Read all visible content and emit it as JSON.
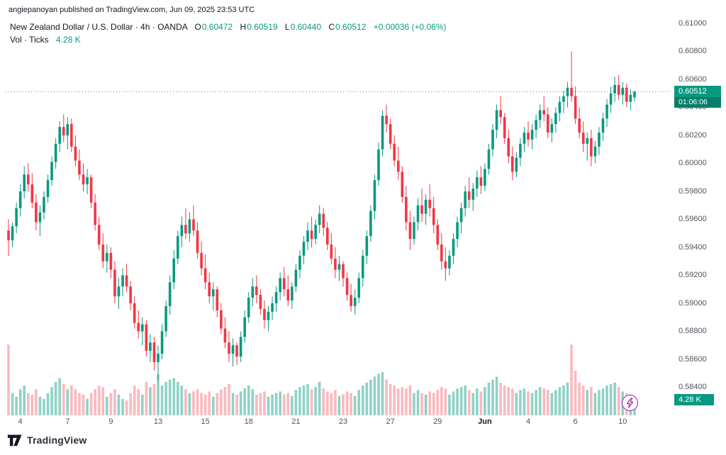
{
  "page": {
    "attribution": "angiepanoyan published on TradingView.com, Jun 09, 2025 23:53 UTC",
    "brand": "TradingView"
  },
  "legend": {
    "title": "New Zealand Dollar / U.S. Dollar · 4h · OANDA",
    "ohlc": [
      {
        "label": "O",
        "value": "0.60472"
      },
      {
        "label": "H",
        "value": "0.60519"
      },
      {
        "label": "L",
        "value": "0.60440"
      },
      {
        "label": "C",
        "value": "0.60512"
      }
    ],
    "change": "+0.00036 (+0.06%)",
    "volume_label": "Vol · Ticks",
    "volume_value": "4.28 K"
  },
  "price_scale": {
    "ticks": [
      "0.61000",
      "0.60800",
      "0.60600",
      "0.60400",
      "0.60200",
      "0.60000",
      "0.59800",
      "0.59600",
      "0.59400",
      "0.59200",
      "0.59000",
      "0.58800",
      "0.58600",
      "0.58400"
    ],
    "last_price": "0.60512",
    "countdown": "01:06:06"
  },
  "volume_badge": "4.28 K",
  "time_scale": [
    {
      "label": "4",
      "index": 3
    },
    {
      "label": "7",
      "index": 15
    },
    {
      "label": "9",
      "index": 26
    },
    {
      "label": "13",
      "index": 38
    },
    {
      "label": "15",
      "index": 50
    },
    {
      "label": "18",
      "index": 61
    },
    {
      "label": "21",
      "index": 73
    },
    {
      "label": "23",
      "index": 85
    },
    {
      "label": "27",
      "index": 97
    },
    {
      "label": "29",
      "index": 109
    },
    {
      "label": "Jun",
      "index": 121,
      "bold": true
    },
    {
      "label": "4",
      "index": 132
    },
    {
      "label": "6",
      "index": 144
    },
    {
      "label": "10",
      "index": 156
    }
  ],
  "colors": {
    "up": "#089981",
    "down": "#f23645",
    "volume_up": "rgba(8,153,129,0.45)",
    "volume_down": "rgba(242,54,69,0.35)",
    "axis_text": "#50535e",
    "accent_purple": "#9c27b0"
  },
  "chart_data": {
    "type": "candlestick",
    "title": "New Zealand Dollar / U.S. Dollar",
    "exchange": "OANDA",
    "interval": "4h",
    "open": 0.60472,
    "high": 0.60519,
    "low": 0.6044,
    "close": 0.60512,
    "change_text": "+0.00036 (+0.06%)",
    "volume_text": "4.28 K",
    "y_axis": {
      "min": 0.584,
      "max": 0.611,
      "tick_step": 0.002
    },
    "legend_note": "candles are [open, high, low, close, relative_volume]",
    "candles": [
      [
        0.5952,
        0.596,
        0.5934,
        0.5945,
        95
      ],
      [
        0.5945,
        0.5958,
        0.594,
        0.5955,
        30
      ],
      [
        0.5955,
        0.5972,
        0.595,
        0.5968,
        25
      ],
      [
        0.5968,
        0.5985,
        0.5962,
        0.598,
        35
      ],
      [
        0.598,
        0.5998,
        0.5975,
        0.5992,
        40
      ],
      [
        0.5992,
        0.6,
        0.598,
        0.5985,
        30
      ],
      [
        0.5985,
        0.5993,
        0.5968,
        0.5972,
        28
      ],
      [
        0.5972,
        0.5978,
        0.5952,
        0.5958,
        35
      ],
      [
        0.5958,
        0.597,
        0.5948,
        0.5965,
        25
      ],
      [
        0.5965,
        0.598,
        0.596,
        0.5976,
        22
      ],
      [
        0.5976,
        0.5992,
        0.5972,
        0.5988,
        30
      ],
      [
        0.5988,
        0.6005,
        0.5984,
        0.6001,
        38
      ],
      [
        0.6001,
        0.6018,
        0.5996,
        0.6014,
        45
      ],
      [
        0.6014,
        0.603,
        0.6008,
        0.6026,
        50
      ],
      [
        0.6026,
        0.6035,
        0.6015,
        0.602,
        42
      ],
      [
        0.602,
        0.6033,
        0.601,
        0.6028,
        35
      ],
      [
        0.6028,
        0.6032,
        0.6008,
        0.6012,
        40
      ],
      [
        0.6012,
        0.602,
        0.5998,
        0.6002,
        35
      ],
      [
        0.6002,
        0.601,
        0.5988,
        0.5992,
        30
      ],
      [
        0.5992,
        0.6,
        0.598,
        0.5985,
        28
      ],
      [
        0.5985,
        0.5996,
        0.5978,
        0.599,
        22
      ],
      [
        0.599,
        0.5992,
        0.5968,
        0.5972,
        30
      ],
      [
        0.5972,
        0.5978,
        0.5952,
        0.5956,
        35
      ],
      [
        0.5956,
        0.5962,
        0.5938,
        0.5942,
        40
      ],
      [
        0.5942,
        0.595,
        0.5925,
        0.593,
        38
      ],
      [
        0.593,
        0.5942,
        0.5922,
        0.5936,
        25
      ],
      [
        0.5936,
        0.594,
        0.5918,
        0.5924,
        30
      ],
      [
        0.5924,
        0.593,
        0.59,
        0.5905,
        35
      ],
      [
        0.5905,
        0.5918,
        0.5896,
        0.5912,
        28
      ],
      [
        0.5912,
        0.5925,
        0.5905,
        0.592,
        22
      ],
      [
        0.592,
        0.5928,
        0.5908,
        0.5912,
        20
      ],
      [
        0.5912,
        0.5916,
        0.5895,
        0.59,
        30
      ],
      [
        0.59,
        0.5905,
        0.5882,
        0.5886,
        40
      ],
      [
        0.5886,
        0.5895,
        0.5875,
        0.588,
        35
      ],
      [
        0.588,
        0.589,
        0.587,
        0.5885,
        28
      ],
      [
        0.5885,
        0.5888,
        0.5862,
        0.5866,
        45
      ],
      [
        0.5866,
        0.5878,
        0.5858,
        0.5872,
        38
      ],
      [
        0.5872,
        0.5876,
        0.5852,
        0.5858,
        42
      ],
      [
        0.5858,
        0.587,
        0.5845,
        0.5864,
        55
      ],
      [
        0.5864,
        0.5885,
        0.586,
        0.588,
        40
      ],
      [
        0.588,
        0.5902,
        0.5876,
        0.5898,
        45
      ],
      [
        0.5898,
        0.592,
        0.5892,
        0.5915,
        48
      ],
      [
        0.5915,
        0.5938,
        0.591,
        0.5932,
        50
      ],
      [
        0.5932,
        0.5952,
        0.5928,
        0.5948,
        45
      ],
      [
        0.5948,
        0.5962,
        0.594,
        0.5956,
        40
      ],
      [
        0.5956,
        0.5968,
        0.5946,
        0.595,
        35
      ],
      [
        0.595,
        0.5965,
        0.5944,
        0.596,
        30
      ],
      [
        0.596,
        0.597,
        0.5948,
        0.5952,
        32
      ],
      [
        0.5952,
        0.5958,
        0.5932,
        0.5936,
        35
      ],
      [
        0.5936,
        0.5944,
        0.592,
        0.5925,
        30
      ],
      [
        0.5925,
        0.5935,
        0.591,
        0.5915,
        28
      ],
      [
        0.5915,
        0.5922,
        0.59,
        0.5905,
        32
      ],
      [
        0.5905,
        0.5915,
        0.5895,
        0.591,
        25
      ],
      [
        0.591,
        0.5912,
        0.589,
        0.5895,
        30
      ],
      [
        0.5895,
        0.59,
        0.5878,
        0.5882,
        35
      ],
      [
        0.5882,
        0.589,
        0.5868,
        0.5872,
        38
      ],
      [
        0.5872,
        0.588,
        0.5858,
        0.5864,
        42
      ],
      [
        0.5864,
        0.5875,
        0.5855,
        0.587,
        30
      ],
      [
        0.587,
        0.5872,
        0.5856,
        0.5862,
        28
      ],
      [
        0.5862,
        0.588,
        0.5858,
        0.5876,
        32
      ],
      [
        0.5876,
        0.5895,
        0.5872,
        0.589,
        36
      ],
      [
        0.589,
        0.5908,
        0.5886,
        0.5904,
        40
      ],
      [
        0.5904,
        0.5918,
        0.5898,
        0.5912,
        35
      ],
      [
        0.5912,
        0.592,
        0.59,
        0.5906,
        28
      ],
      [
        0.5906,
        0.591,
        0.5892,
        0.5896,
        30
      ],
      [
        0.5896,
        0.5902,
        0.5882,
        0.5888,
        32
      ],
      [
        0.5888,
        0.5898,
        0.588,
        0.5894,
        25
      ],
      [
        0.5894,
        0.5905,
        0.5888,
        0.59,
        28
      ],
      [
        0.59,
        0.5912,
        0.5894,
        0.5908,
        30
      ],
      [
        0.5908,
        0.5922,
        0.5902,
        0.5918,
        32
      ],
      [
        0.5918,
        0.5926,
        0.5905,
        0.591,
        28
      ],
      [
        0.591,
        0.592,
        0.5898,
        0.5902,
        30
      ],
      [
        0.5902,
        0.5915,
        0.5896,
        0.5912,
        26
      ],
      [
        0.5912,
        0.5928,
        0.5908,
        0.5924,
        34
      ],
      [
        0.5924,
        0.5938,
        0.5918,
        0.5934,
        38
      ],
      [
        0.5934,
        0.5948,
        0.5928,
        0.5944,
        40
      ],
      [
        0.5944,
        0.5958,
        0.5938,
        0.5952,
        42
      ],
      [
        0.5952,
        0.5962,
        0.594,
        0.5946,
        35
      ],
      [
        0.5946,
        0.596,
        0.5942,
        0.5956,
        38
      ],
      [
        0.5956,
        0.597,
        0.595,
        0.5964,
        45
      ],
      [
        0.5964,
        0.5968,
        0.5948,
        0.5954,
        36
      ],
      [
        0.5954,
        0.5958,
        0.5938,
        0.5942,
        32
      ],
      [
        0.5942,
        0.595,
        0.5928,
        0.5932,
        30
      ],
      [
        0.5932,
        0.594,
        0.5918,
        0.5924,
        34
      ],
      [
        0.5924,
        0.5934,
        0.5916,
        0.5928,
        26
      ],
      [
        0.5928,
        0.593,
        0.5912,
        0.5918,
        28
      ],
      [
        0.5918,
        0.5922,
        0.5902,
        0.5906,
        32
      ],
      [
        0.5906,
        0.5914,
        0.5894,
        0.5898,
        30
      ],
      [
        0.5898,
        0.591,
        0.5892,
        0.5904,
        26
      ],
      [
        0.5904,
        0.5922,
        0.59,
        0.5918,
        34
      ],
      [
        0.5918,
        0.5938,
        0.5912,
        0.5934,
        40
      ],
      [
        0.5934,
        0.5952,
        0.5928,
        0.5948,
        44
      ],
      [
        0.5948,
        0.597,
        0.5944,
        0.5966,
        48
      ],
      [
        0.5966,
        0.5992,
        0.596,
        0.5988,
        52
      ],
      [
        0.5988,
        0.6015,
        0.5984,
        0.601,
        56
      ],
      [
        0.601,
        0.6038,
        0.6005,
        0.6034,
        58
      ],
      [
        0.6034,
        0.6042,
        0.6022,
        0.6028,
        48
      ],
      [
        0.6028,
        0.6032,
        0.601,
        0.6014,
        42
      ],
      [
        0.6014,
        0.602,
        0.5998,
        0.6002,
        40
      ],
      [
        0.6002,
        0.6012,
        0.5988,
        0.5994,
        36
      ],
      [
        0.5994,
        0.5998,
        0.5972,
        0.5976,
        38
      ],
      [
        0.5976,
        0.5984,
        0.5952,
        0.5958,
        36
      ],
      [
        0.5958,
        0.5966,
        0.5938,
        0.5946,
        40
      ],
      [
        0.5946,
        0.5962,
        0.5942,
        0.5958,
        30
      ],
      [
        0.5958,
        0.5975,
        0.5952,
        0.597,
        34
      ],
      [
        0.597,
        0.5982,
        0.5958,
        0.5964,
        30
      ],
      [
        0.5964,
        0.5978,
        0.5956,
        0.5974,
        28
      ],
      [
        0.5974,
        0.5985,
        0.5962,
        0.5968,
        32
      ],
      [
        0.5968,
        0.5976,
        0.595,
        0.5956,
        30
      ],
      [
        0.5956,
        0.596,
        0.5938,
        0.5942,
        34
      ],
      [
        0.5942,
        0.595,
        0.5924,
        0.593,
        38
      ],
      [
        0.593,
        0.594,
        0.5916,
        0.5925,
        36
      ],
      [
        0.5925,
        0.5938,
        0.592,
        0.5934,
        28
      ],
      [
        0.5934,
        0.595,
        0.5928,
        0.5946,
        32
      ],
      [
        0.5946,
        0.5962,
        0.594,
        0.5958,
        36
      ],
      [
        0.5958,
        0.5972,
        0.595,
        0.5968,
        38
      ],
      [
        0.5968,
        0.5984,
        0.5962,
        0.598,
        40
      ],
      [
        0.598,
        0.599,
        0.5968,
        0.5974,
        34
      ],
      [
        0.5974,
        0.5986,
        0.5966,
        0.5982,
        30
      ],
      [
        0.5982,
        0.5995,
        0.5976,
        0.599,
        36
      ],
      [
        0.599,
        0.5998,
        0.5978,
        0.5984,
        32
      ],
      [
        0.5984,
        0.6,
        0.598,
        0.5996,
        38
      ],
      [
        0.5996,
        0.6014,
        0.5992,
        0.601,
        44
      ],
      [
        0.601,
        0.6028,
        0.6005,
        0.6024,
        48
      ],
      [
        0.6024,
        0.6042,
        0.6018,
        0.6038,
        52
      ],
      [
        0.6038,
        0.6048,
        0.6028,
        0.6033,
        44
      ],
      [
        0.6033,
        0.6036,
        0.6014,
        0.6018,
        40
      ],
      [
        0.6018,
        0.6024,
        0.6,
        0.6005,
        38
      ],
      [
        0.6005,
        0.6012,
        0.5988,
        0.5994,
        36
      ],
      [
        0.5994,
        0.6008,
        0.599,
        0.6004,
        30
      ],
      [
        0.6004,
        0.6018,
        0.5998,
        0.6014,
        34
      ],
      [
        0.6014,
        0.6026,
        0.6008,
        0.6022,
        36
      ],
      [
        0.6022,
        0.603,
        0.6012,
        0.6017,
        32
      ],
      [
        0.6017,
        0.6028,
        0.601,
        0.6024,
        30
      ],
      [
        0.6024,
        0.6035,
        0.6018,
        0.6031,
        34
      ],
      [
        0.6031,
        0.6042,
        0.6025,
        0.6038,
        38
      ],
      [
        0.6038,
        0.6048,
        0.603,
        0.6035,
        36
      ],
      [
        0.6035,
        0.604,
        0.6018,
        0.6022,
        34
      ],
      [
        0.6022,
        0.6032,
        0.6015,
        0.6028,
        30
      ],
      [
        0.6028,
        0.604,
        0.6022,
        0.6036,
        34
      ],
      [
        0.6036,
        0.6048,
        0.603,
        0.6044,
        38
      ],
      [
        0.6044,
        0.6052,
        0.6036,
        0.6048,
        40
      ],
      [
        0.6048,
        0.6058,
        0.604,
        0.6054,
        44
      ],
      [
        0.6054,
        0.608,
        0.6044,
        0.6048,
        95
      ],
      [
        0.6048,
        0.6055,
        0.6028,
        0.6032,
        60
      ],
      [
        0.6032,
        0.604,
        0.6018,
        0.6022,
        44
      ],
      [
        0.6022,
        0.603,
        0.6008,
        0.6014,
        40
      ],
      [
        0.6014,
        0.6022,
        0.6002,
        0.6018,
        34
      ],
      [
        0.6018,
        0.6024,
        0.5998,
        0.6005,
        38
      ],
      [
        0.6005,
        0.6016,
        0.6,
        0.6012,
        30
      ],
      [
        0.6012,
        0.6026,
        0.6006,
        0.6022,
        34
      ],
      [
        0.6022,
        0.6036,
        0.6016,
        0.6032,
        36
      ],
      [
        0.6032,
        0.6046,
        0.6026,
        0.6042,
        40
      ],
      [
        0.6042,
        0.6055,
        0.6036,
        0.605,
        42
      ],
      [
        0.605,
        0.6062,
        0.6044,
        0.6056,
        44
      ],
      [
        0.6056,
        0.6063,
        0.6045,
        0.6049,
        38
      ],
      [
        0.6049,
        0.6058,
        0.6042,
        0.6054,
        32
      ],
      [
        0.6054,
        0.6057,
        0.604,
        0.6044,
        30
      ],
      [
        0.6044,
        0.6053,
        0.6038,
        0.6049,
        28
      ],
      [
        0.60472,
        0.60519,
        0.6044,
        0.60512,
        25
      ]
    ]
  }
}
